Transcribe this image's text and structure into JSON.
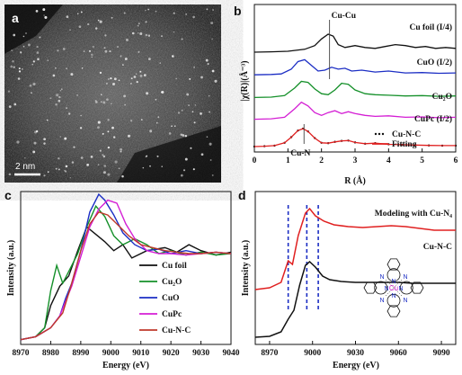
{
  "panels": {
    "a": {
      "label": "a",
      "scalebar": "2 nm"
    },
    "b": {
      "label": "b"
    },
    "c": {
      "label": "c"
    },
    "d": {
      "label": "d",
      "molecule_center": "Cu",
      "molecule_n": "N"
    }
  },
  "chart_data": [
    {
      "panel": "b",
      "type": "line",
      "xlabel": "R (Å)",
      "ylabel": "|χ(R)|(Å⁻³)",
      "xlim": [
        0,
        6
      ],
      "xticks": [
        0,
        1,
        2,
        3,
        4,
        5,
        6
      ],
      "annotations": [
        {
          "text": "Cu-Cu",
          "x": 2.24
        },
        {
          "text": "Cu-N",
          "x": 1.48
        }
      ],
      "series": [
        {
          "name": "Cu foil (I/4)",
          "color": "#111111",
          "offset": 5.0,
          "x": [
            0.0,
            0.5,
            1.0,
            1.5,
            1.8,
            2.0,
            2.2,
            2.35,
            2.5,
            2.7,
            3.0,
            3.3,
            3.6,
            3.9,
            4.2,
            4.5,
            4.8,
            5.1,
            5.4,
            5.7,
            6.0
          ],
          "y": [
            0.0,
            0.02,
            0.05,
            0.15,
            0.35,
            0.7,
            0.95,
            0.85,
            0.4,
            0.25,
            0.35,
            0.25,
            0.2,
            0.3,
            0.4,
            0.35,
            0.25,
            0.3,
            0.2,
            0.25,
            0.2
          ]
        },
        {
          "name": "CuO (I/2)",
          "color": "#1c2ec4",
          "offset": 3.8,
          "x": [
            0.0,
            0.5,
            0.8,
            1.1,
            1.3,
            1.5,
            1.7,
            1.9,
            2.1,
            2.3,
            2.5,
            2.7,
            2.9,
            3.2,
            3.6,
            4.0,
            4.5,
            5.0,
            5.5,
            6.0
          ],
          "y": [
            0.0,
            0.02,
            0.05,
            0.3,
            0.7,
            0.8,
            0.5,
            0.2,
            0.25,
            0.4,
            0.3,
            0.35,
            0.2,
            0.25,
            0.15,
            0.2,
            0.1,
            0.12,
            0.08,
            0.1
          ]
        },
        {
          "name": "Cu₂O",
          "color": "#15902a",
          "offset": 2.6,
          "x": [
            0.0,
            0.5,
            0.9,
            1.2,
            1.4,
            1.6,
            1.8,
            2.0,
            2.2,
            2.4,
            2.6,
            2.8,
            3.0,
            3.3,
            3.6,
            4.0,
            4.5,
            5.0,
            5.5,
            6.0
          ],
          "y": [
            0.0,
            0.02,
            0.1,
            0.5,
            0.85,
            0.8,
            0.45,
            0.2,
            0.15,
            0.4,
            0.75,
            0.7,
            0.4,
            0.2,
            0.15,
            0.12,
            0.08,
            0.1,
            0.06,
            0.08
          ]
        },
        {
          "name": "CuPc (I/2)",
          "color": "#d41ed4",
          "offset": 1.45,
          "x": [
            0.0,
            0.5,
            0.9,
            1.2,
            1.4,
            1.6,
            1.8,
            2.0,
            2.2,
            2.4,
            2.6,
            2.8,
            3.0,
            3.3,
            3.6,
            4.0,
            4.5,
            5.0,
            5.5,
            6.0
          ],
          "y": [
            0.0,
            0.02,
            0.1,
            0.55,
            0.9,
            0.7,
            0.35,
            0.2,
            0.35,
            0.45,
            0.3,
            0.4,
            0.3,
            0.2,
            0.15,
            0.18,
            0.1,
            0.12,
            0.08,
            0.1
          ]
        },
        {
          "name": "Cu-N-C",
          "color": "#111111",
          "offset": 0.0,
          "style": "dots",
          "x": [
            0.0,
            0.3,
            0.6,
            0.9,
            1.1,
            1.3,
            1.45,
            1.6,
            1.8,
            2.0,
            2.2,
            2.4,
            2.6,
            2.8,
            3.0,
            3.3,
            3.6,
            4.0,
            4.4,
            4.8,
            5.2,
            5.6,
            6.0
          ],
          "y": [
            0.0,
            0.02,
            0.05,
            0.2,
            0.5,
            0.85,
            0.95,
            0.8,
            0.45,
            0.2,
            0.18,
            0.25,
            0.3,
            0.32,
            0.22,
            0.15,
            0.18,
            0.12,
            0.1,
            0.08,
            0.06,
            0.05,
            0.05
          ]
        },
        {
          "name": "Fitting",
          "color": "#e02020",
          "offset": 0.0,
          "x": [
            0.0,
            0.3,
            0.6,
            0.9,
            1.1,
            1.3,
            1.45,
            1.6,
            1.8,
            2.0,
            2.2,
            2.4,
            2.6,
            2.8,
            3.0,
            3.3,
            3.6,
            4.0,
            4.4,
            4.8,
            5.2,
            5.6,
            6.0
          ],
          "y": [
            0.0,
            0.02,
            0.05,
            0.2,
            0.5,
            0.85,
            0.95,
            0.8,
            0.45,
            0.2,
            0.18,
            0.25,
            0.3,
            0.32,
            0.22,
            0.15,
            0.18,
            0.12,
            0.1,
            0.08,
            0.06,
            0.05,
            0.05
          ]
        }
      ]
    },
    {
      "panel": "c",
      "type": "line",
      "xlabel": "Energy (eV)",
      "ylabel": "Intensity (a.u.)",
      "xlim": [
        8970,
        9040
      ],
      "xticks": [
        8970,
        8980,
        8990,
        9000,
        9010,
        9020,
        9030,
        9040
      ],
      "series": [
        {
          "name": "Cu foil",
          "color": "#111111",
          "x": [
            8970,
            8975,
            8978,
            8980,
            8983,
            8986,
            8989,
            8992,
            8995,
            8998,
            9001,
            9004,
            9007,
            9012,
            9018,
            9022,
            9026,
            9030,
            9035,
            9040
          ],
          "y": [
            0.02,
            0.04,
            0.1,
            0.25,
            0.38,
            0.45,
            0.62,
            0.78,
            0.73,
            0.68,
            0.62,
            0.66,
            0.57,
            0.62,
            0.64,
            0.61,
            0.66,
            0.62,
            0.59,
            0.61
          ]
        },
        {
          "name": "Cu₂O",
          "color": "#15902a",
          "x": [
            8970,
            8975,
            8978,
            8980,
            8982,
            8984,
            8986,
            8989,
            8992,
            8995,
            8998,
            9001,
            9004,
            9008,
            9012,
            9016,
            9020,
            9025,
            9030,
            9035,
            9040
          ],
          "y": [
            0.02,
            0.04,
            0.1,
            0.35,
            0.52,
            0.4,
            0.48,
            0.6,
            0.78,
            0.92,
            0.85,
            0.72,
            0.66,
            0.7,
            0.66,
            0.6,
            0.62,
            0.59,
            0.61,
            0.59,
            0.6
          ]
        },
        {
          "name": "CuO",
          "color": "#1c2ec4",
          "x": [
            8970,
            8975,
            8980,
            8983,
            8985,
            8987,
            8990,
            8993,
            8996,
            8998,
            9001,
            9004,
            9008,
            9012,
            9016,
            9020,
            9025,
            9030,
            9035,
            9040
          ],
          "y": [
            0.02,
            0.04,
            0.1,
            0.18,
            0.3,
            0.4,
            0.62,
            0.88,
            1.0,
            0.96,
            0.86,
            0.74,
            0.66,
            0.62,
            0.63,
            0.6,
            0.62,
            0.6,
            0.61,
            0.6
          ]
        },
        {
          "name": "CuPc",
          "color": "#d41ed4",
          "x": [
            8970,
            8975,
            8980,
            8983,
            8985,
            8987,
            8990,
            8993,
            8996,
            8999,
            9002,
            9005,
            9008,
            9012,
            9016,
            9020,
            9025,
            9030,
            9035,
            9040
          ],
          "y": [
            0.02,
            0.04,
            0.1,
            0.18,
            0.28,
            0.38,
            0.58,
            0.78,
            0.9,
            0.96,
            0.94,
            0.8,
            0.7,
            0.62,
            0.6,
            0.6,
            0.59,
            0.6,
            0.61,
            0.6
          ]
        },
        {
          "name": "Cu-N-C",
          "color": "#c0392b",
          "x": [
            8970,
            8975,
            8980,
            8984,
            8987,
            8990,
            8993,
            8996,
            8999,
            9002,
            9006,
            9010,
            9014,
            9018,
            9022,
            9026,
            9030,
            9035,
            9040
          ],
          "y": [
            0.02,
            0.04,
            0.1,
            0.2,
            0.4,
            0.62,
            0.8,
            0.88,
            0.86,
            0.8,
            0.72,
            0.66,
            0.64,
            0.62,
            0.61,
            0.6,
            0.6,
            0.61,
            0.6
          ]
        }
      ]
    },
    {
      "panel": "d",
      "type": "line",
      "xlabel": "Energy (eV)",
      "ylabel": "Intensity (a.u.)",
      "xlim": [
        8960,
        9100
      ],
      "xticks": [
        8970,
        9000,
        9030,
        9060,
        9090
      ],
      "markers_x": [
        8983,
        8996,
        9004
      ],
      "series": [
        {
          "name": "Modeling with Cu-N₄",
          "color": "#e02020",
          "offset": 0.45,
          "x": [
            8960,
            8970,
            8978,
            8983,
            8986,
            8990,
            8995,
            8998,
            9002,
            9008,
            9015,
            9025,
            9035,
            9045,
            9055,
            9065,
            9075,
            9085,
            9095,
            9100
          ],
          "y": [
            0.1,
            0.12,
            0.18,
            0.42,
            0.38,
            0.7,
            0.95,
            1.0,
            0.92,
            0.86,
            0.82,
            0.8,
            0.79,
            0.8,
            0.81,
            0.8,
            0.78,
            0.76,
            0.76,
            0.76
          ]
        },
        {
          "name": "Cu-N-C",
          "color": "#111111",
          "offset": 0.0,
          "x": [
            8960,
            8970,
            8978,
            8983,
            8987,
            8991,
            8995,
            8998,
            9002,
            9007,
            9012,
            9020,
            9030,
            9040,
            9050,
            9060,
            9070,
            9080,
            9090,
            9100
          ],
          "y": [
            0.02,
            0.03,
            0.08,
            0.22,
            0.32,
            0.6,
            0.82,
            0.86,
            0.8,
            0.7,
            0.66,
            0.64,
            0.63,
            0.63,
            0.63,
            0.63,
            0.62,
            0.62,
            0.62,
            0.62
          ]
        }
      ]
    }
  ]
}
